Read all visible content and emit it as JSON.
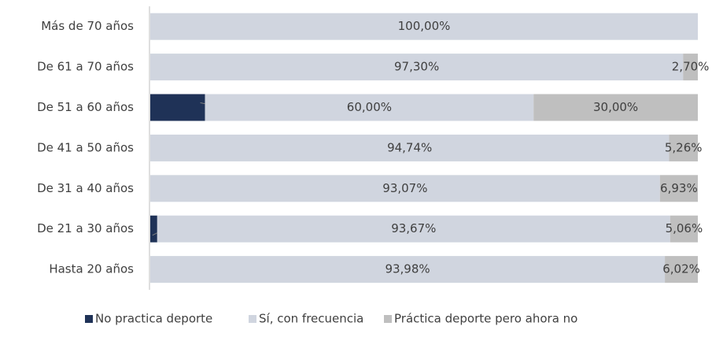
{
  "chart_data": {
    "type": "stacked-bar-horizontal",
    "categories": [
      "Más de 70 años",
      "De 61 a 70 años",
      "De 51 a 60 años",
      "De 41 a 50 años",
      "De 31 a 40 años",
      "De 21 a 30 años",
      "Hasta 20 años"
    ],
    "series": [
      {
        "name": "No practica deporte",
        "color": "#1f3257",
        "values": [
          0,
          0,
          10,
          0,
          0,
          1.27,
          0
        ],
        "value_labels": [
          null,
          null,
          "10,00%",
          null,
          null,
          "1,27%",
          null
        ]
      },
      {
        "name": "Sí, con frecuencia",
        "color": "#d0d5df",
        "values": [
          100,
          97.3,
          60,
          94.74,
          93.07,
          93.67,
          93.98
        ],
        "value_labels": [
          "100,00%",
          "97,30%",
          "60,00%",
          "94,74%",
          "93,07%",
          "93,67%",
          "93,98%"
        ]
      },
      {
        "name": "Práctica deporte pero ahora no",
        "color": "#bfbfbf",
        "values": [
          0,
          2.7,
          30,
          5.26,
          6.93,
          5.06,
          6.02
        ],
        "value_labels": [
          null,
          "2,70%",
          "30,00%",
          "5,26%",
          "6,93%",
          "5,06%",
          "6,02%"
        ]
      }
    ],
    "xlim": [
      0,
      100
    ],
    "legend": "bottom"
  }
}
